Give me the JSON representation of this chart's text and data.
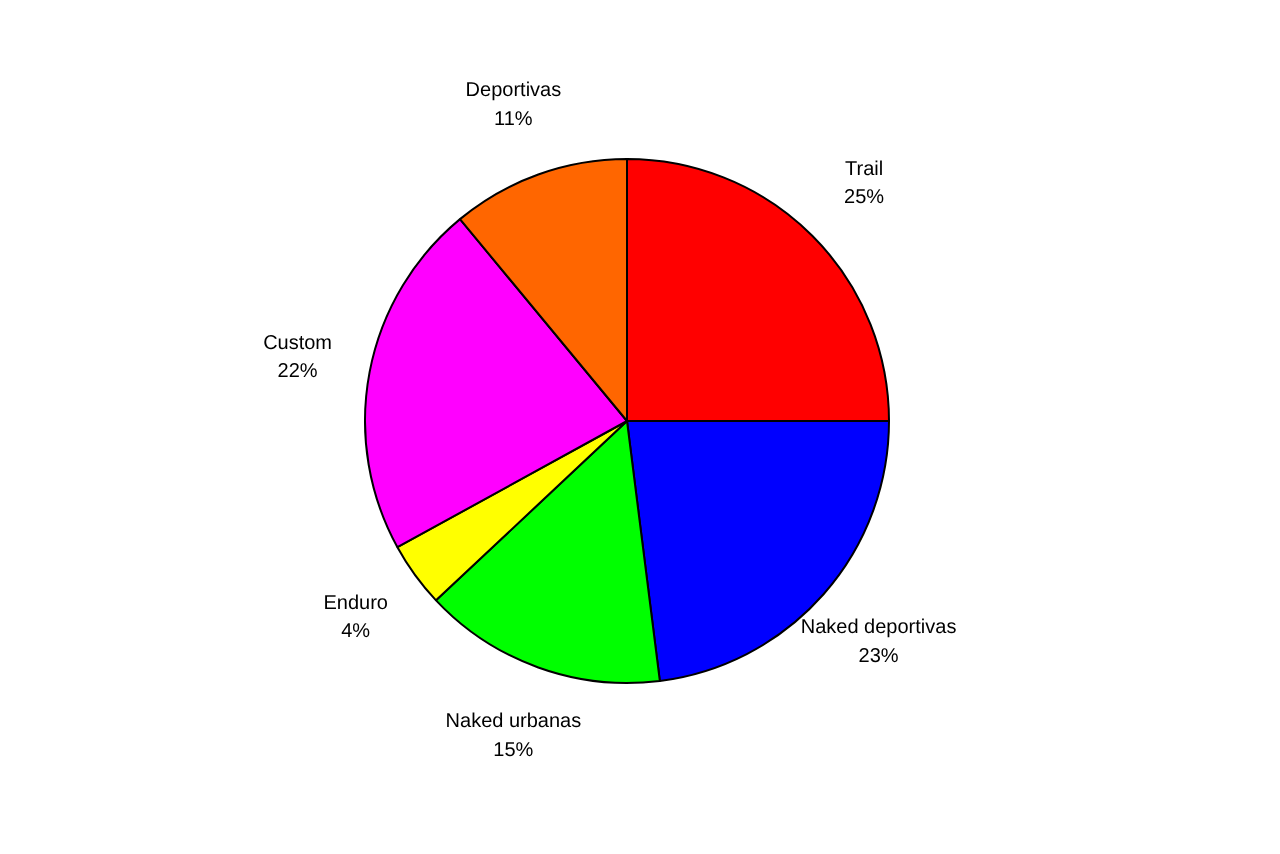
{
  "chart_data": {
    "type": "pie",
    "categories": [
      "Trail",
      "Naked deportivas",
      "Naked urbanas",
      "Enduro",
      "Custom",
      "Deportivas"
    ],
    "values": [
      25,
      23,
      15,
      4,
      22,
      11
    ],
    "colors": [
      "#ff0000",
      "#0000ff",
      "#00ff00",
      "#ffff00",
      "#ff00ff",
      "#ff6600"
    ],
    "value_labels": [
      "25%",
      "23%",
      "15%",
      "4%",
      "22%",
      "11%"
    ]
  }
}
